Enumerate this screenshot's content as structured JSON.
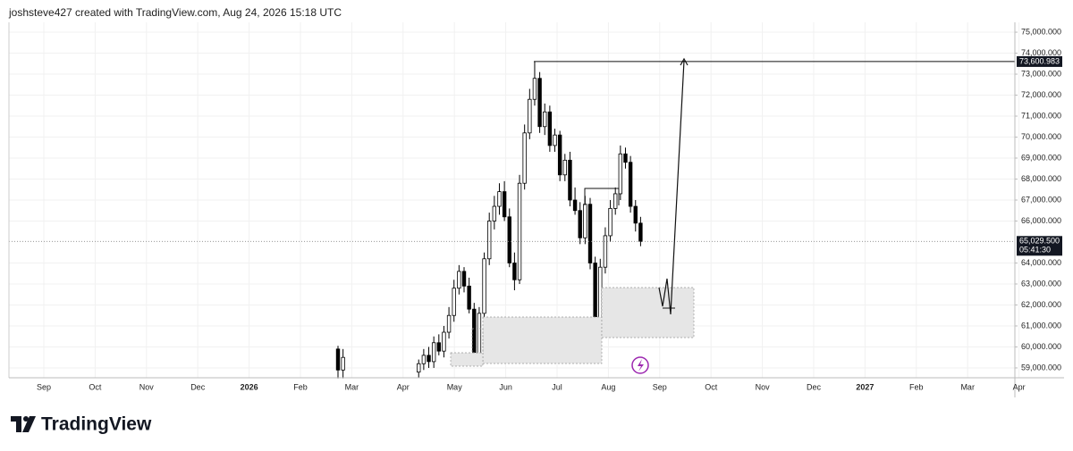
{
  "header": "joshsteve427 created with TradingView.com, Aug 24, 2026 15:18 UTC",
  "brand": "TradingView",
  "chart_data": {
    "type": "candlestick",
    "x_labels": [
      "Sep",
      "Oct",
      "Nov",
      "Dec",
      "2026",
      "Feb",
      "Mar",
      "Apr",
      "May",
      "Jun",
      "Jul",
      "Aug",
      "Sep",
      "Oct",
      "Nov",
      "Dec",
      "2027",
      "Feb",
      "Mar",
      "Apr"
    ],
    "open": [
      59900,
      58900,
      null,
      null,
      null,
      null,
      null,
      null,
      null,
      null,
      null,
      null,
      null,
      null,
      null,
      null,
      58800,
      59200,
      59600,
      59300,
      60200,
      59800,
      60700,
      61500,
      62800,
      63600,
      62900,
      61800,
      59700,
      61600,
      64200,
      66000,
      66700,
      67400,
      66200,
      64000,
      63200,
      67800,
      70200,
      71800,
      72800,
      70500,
      71200,
      69600,
      70100,
      68200,
      68900,
      67000,
      66500,
      65200,
      66800,
      64000,
      61200,
      63800,
      65300,
      66600,
      67300,
      69200,
      68800,
      66700,
      65900
    ],
    "high": [
      60050,
      59900,
      null,
      null,
      null,
      null,
      null,
      null,
      null,
      null,
      null,
      null,
      null,
      null,
      null,
      null,
      59400,
      59900,
      60000,
      60500,
      60600,
      61000,
      61900,
      63200,
      63900,
      63800,
      63300,
      62100,
      61900,
      64500,
      66400,
      67200,
      67800,
      67900,
      66600,
      64500,
      68200,
      70600,
      72300,
      73600,
      73100,
      71600,
      71500,
      70400,
      70300,
      69200,
      69300,
      67600,
      66900,
      67200,
      67100,
      64300,
      64200,
      65700,
      67000,
      67600,
      69600,
      69500,
      69100,
      67000,
      66200
    ],
    "low": [
      58500,
      58500,
      null,
      null,
      null,
      null,
      null,
      null,
      null,
      null,
      null,
      null,
      null,
      null,
      null,
      null,
      58550,
      58900,
      59000,
      59000,
      59600,
      59500,
      60400,
      61200,
      62500,
      62600,
      61600,
      59500,
      59400,
      61300,
      63900,
      65600,
      66300,
      66000,
      63800,
      62700,
      63000,
      67500,
      69900,
      71500,
      70200,
      70100,
      69300,
      69300,
      67900,
      67900,
      66700,
      66300,
      64900,
      64900,
      63700,
      60900,
      60450,
      63500,
      65000,
      66300,
      67000,
      68500,
      66400,
      65500,
      64800
    ],
    "close": [
      58900,
      59500,
      null,
      null,
      null,
      null,
      null,
      null,
      null,
      null,
      null,
      null,
      null,
      null,
      null,
      null,
      59200,
      59600,
      59300,
      60200,
      59800,
      60700,
      61500,
      62800,
      63600,
      62900,
      61800,
      59700,
      61600,
      64200,
      66000,
      66700,
      67400,
      66200,
      64000,
      63200,
      67800,
      70200,
      71800,
      72800,
      70500,
      71200,
      69600,
      70100,
      68200,
      68900,
      67000,
      66500,
      65200,
      66800,
      64000,
      61200,
      63800,
      65300,
      66600,
      67300,
      69200,
      68800,
      66700,
      65900,
      65029.5
    ],
    "up_color": "#ffffff",
    "down_color": "#000000",
    "ylim": [
      58530,
      75470
    ],
    "yticks": [
      {
        "value": 59000,
        "label": "59,000.000"
      },
      {
        "value": 60000,
        "label": "60,000.000"
      },
      {
        "value": 61000,
        "label": "61,000.000"
      },
      {
        "value": 62000,
        "label": "62,000.000"
      },
      {
        "value": 63000,
        "label": "63,000.000"
      },
      {
        "value": 64000,
        "label": "64,000.000"
      },
      {
        "value": 66000,
        "label": "66,000.000"
      },
      {
        "value": 67000,
        "label": "67,000.000"
      },
      {
        "value": 68000,
        "label": "68,000.000"
      },
      {
        "value": 69000,
        "label": "69,000.000"
      },
      {
        "value": 70000,
        "label": "70,000.000"
      },
      {
        "value": 71000,
        "label": "71,000.000"
      },
      {
        "value": 72000,
        "label": "72,000.000"
      },
      {
        "value": 73000,
        "label": "73,000.000"
      },
      {
        "value": 74000,
        "label": "74,000.000"
      },
      {
        "value": 75000,
        "label": "75,000.000"
      }
    ],
    "grid": true,
    "level": {
      "value": 73600.983,
      "label": "73,600.983"
    },
    "last_price": {
      "value": 65029.5,
      "label": "65,029.500",
      "countdown": "05:41:30"
    }
  }
}
